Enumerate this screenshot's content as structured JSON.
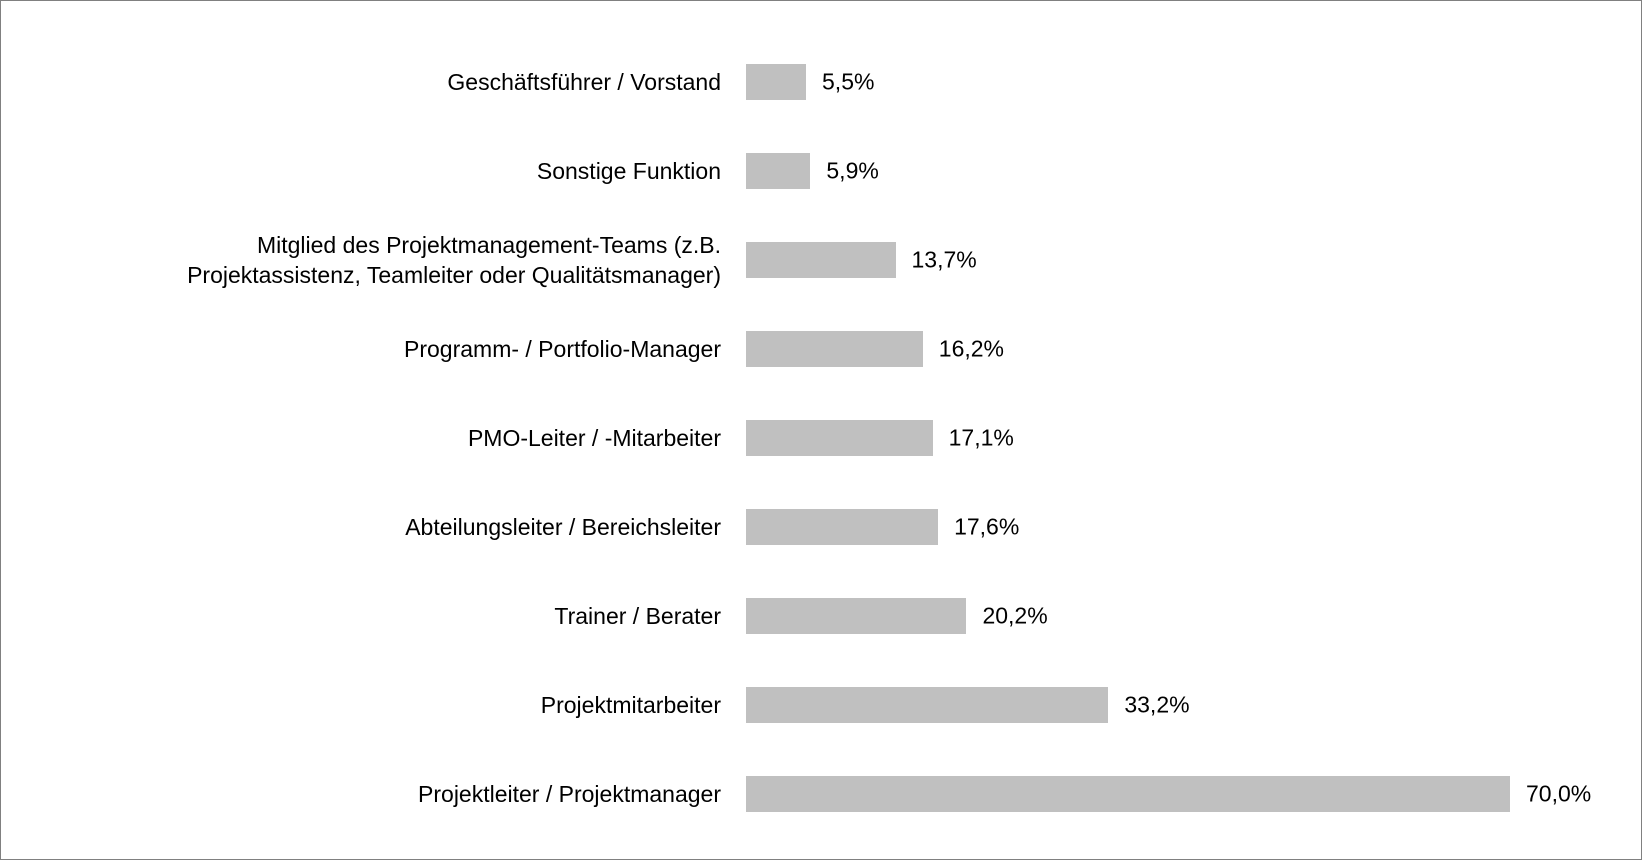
{
  "chart_data": {
    "type": "bar",
    "orientation": "horizontal",
    "color": "#c0c0c0",
    "categories": [
      "Geschäftsführer / Vorstand",
      "Sonstige Funktion",
      "Mitglied des Projektmanagement-Teams (z.B.\nProjektassistenz, Teamleiter oder Qualitätsmanager)",
      "Programm- / Portfolio-Manager",
      "PMO-Leiter / -Mitarbeiter",
      "Abteilungsleiter / Bereichsleiter",
      "Trainer / Berater",
      "Projektmitarbeiter",
      "Projektleiter / Projektmanager"
    ],
    "values": [
      5.5,
      5.9,
      13.7,
      16.2,
      17.1,
      17.6,
      20.2,
      33.2,
      70.0
    ],
    "value_labels": [
      "5,5%",
      "5,9%",
      "13,7%",
      "16,2%",
      "17,1%",
      "17,6%",
      "20,2%",
      "33,2%",
      "70,0%"
    ]
  }
}
